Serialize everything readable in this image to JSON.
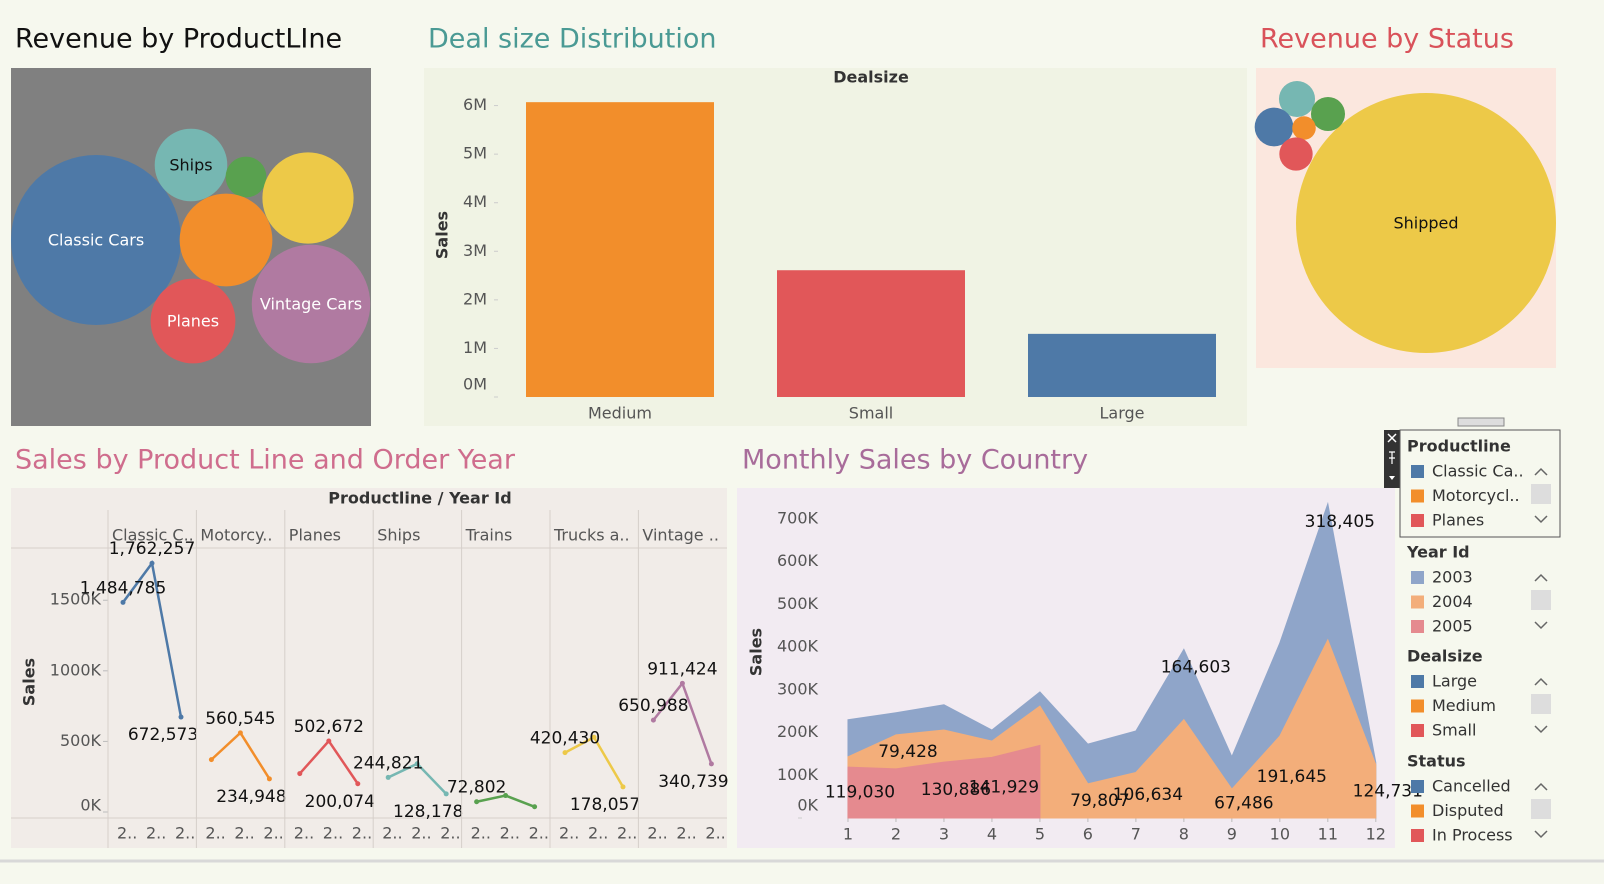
{
  "chart_data": [
    {
      "type": "bubble",
      "title": "Revenue by ProductLIne",
      "categories": [
        "Classic Cars",
        "Ships",
        null,
        null,
        null,
        "Planes",
        "Vintage Cars"
      ],
      "values": [
        3919616,
        714437,
        226243,
        1127790,
        1166388,
        975004,
        1903151
      ],
      "colors": [
        "#4e79a7",
        "#76b7b2",
        "#59a14f",
        "#edc948",
        "#f28e2b",
        "#e15759",
        "#b07aa1"
      ]
    },
    {
      "type": "bar",
      "title": "Deal size Distribution",
      "header": "Dealsize",
      "ylabel": "Sales",
      "categories": [
        "Medium",
        "Small",
        "Large"
      ],
      "values": [
        6070000,
        2610000,
        1300000
      ],
      "colors": [
        "#f28e2b",
        "#e15759",
        "#4e79a7"
      ],
      "ylim": [
        0,
        6300000
      ],
      "yticks": [
        {
          "value": 0,
          "label": "0M"
        },
        {
          "value": 1000000,
          "label": "1M"
        },
        {
          "value": 2000000,
          "label": "2M"
        },
        {
          "value": 3000000,
          "label": "3M"
        },
        {
          "value": 4000000,
          "label": "4M"
        },
        {
          "value": 5000000,
          "label": "5M"
        },
        {
          "value": 6000000,
          "label": "6M"
        }
      ]
    },
    {
      "type": "line",
      "title": "Sales by Product Line and Order Year",
      "header": "Productline / Year Id",
      "ylabel": "Sales",
      "categories": [
        "2..",
        "2..",
        "2.."
      ],
      "ylim": [
        0,
        1870000
      ],
      "yticks": [
        {
          "value": 0,
          "label": "0K"
        },
        {
          "value": 500000,
          "label": "500K"
        },
        {
          "value": 1000000,
          "label": "1000K"
        },
        {
          "value": 1500000,
          "label": "1500K"
        }
      ],
      "series": [
        {
          "name": "Classic C..",
          "color": "#4e79a7",
          "values": [
            1484785,
            1762257,
            672573
          ],
          "value_labels": [
            "1,484,785",
            "1,762,257",
            "672,573"
          ]
        },
        {
          "name": "Motorcy..",
          "color": "#f28e2b",
          "values": [
            370895,
            560545,
            234948
          ],
          "value_labels": [
            null,
            "560,545",
            "234,948"
          ]
        },
        {
          "name": "Planes",
          "color": "#e15759",
          "values": [
            272258,
            502672,
            200074
          ],
          "value_labels": [
            null,
            "502,672",
            "200,074"
          ]
        },
        {
          "name": "Ships",
          "color": "#76b7b2",
          "values": [
            244821,
            341437,
            128178
          ],
          "value_labels": [
            "244,821",
            null,
            "128,178"
          ]
        },
        {
          "name": "Trains",
          "color": "#59a14f",
          "values": [
            72802,
            116524,
            36917
          ],
          "value_labels": [
            "72,802",
            null,
            null
          ]
        },
        {
          "name": "Trucks a..",
          "color": "#edc948",
          "values": [
            420430,
            529302,
            178057
          ],
          "value_labels": [
            "420,430",
            null,
            "178,057"
          ]
        },
        {
          "name": "Vintage ..",
          "color": "#b07aa1",
          "values": [
            650988,
            911424,
            340739
          ],
          "value_labels": [
            "650,988",
            "911,424",
            "340,739"
          ]
        }
      ]
    },
    {
      "type": "area",
      "title": "Monthly Sales by Country",
      "ylabel": "Sales",
      "x": [
        1,
        2,
        3,
        4,
        5,
        6,
        7,
        8,
        9,
        10,
        11,
        12
      ],
      "xlim": [
        0,
        12.4
      ],
      "xticks": [
        1,
        2,
        3,
        4,
        5,
        6,
        7,
        8,
        9,
        10,
        11,
        12
      ],
      "ylim": [
        0,
        770000
      ],
      "yticks": [
        {
          "value": 0,
          "label": "0K"
        },
        {
          "value": 100000,
          "label": "100K"
        },
        {
          "value": 200000,
          "label": "200K"
        },
        {
          "value": 300000,
          "label": "300K"
        },
        {
          "value": 400000,
          "label": "400K"
        },
        {
          "value": 500000,
          "label": "500K"
        },
        {
          "value": 600000,
          "label": "600K"
        },
        {
          "value": 700000,
          "label": "700K"
        }
      ],
      "series": [
        {
          "color": "#e58a8f",
          "values": [
            119030,
            115000,
            130886,
            141929,
            170000,
            null,
            null,
            null,
            null,
            null,
            null,
            null
          ],
          "value_labels": [
            "119,030",
            null,
            "130,886",
            "141,929",
            null,
            null,
            null,
            null,
            null,
            null,
            null,
            null
          ]
        },
        {
          "color": "#f3ae7a",
          "values": [
            24000,
            79428,
            75000,
            38000,
            92000,
            79807,
            106634,
            230000,
            67486,
            191645,
            417000,
            124731
          ],
          "value_labels": [
            null,
            "79,428",
            null,
            null,
            null,
            "79,807",
            "106,634",
            null,
            "67,486",
            "191,645",
            null,
            "124,731"
          ]
        },
        {
          "color": "#8fa5c9",
          "values": [
            87000,
            52000,
            59000,
            26000,
            33000,
            93000,
            97000,
            164603,
            76000,
            218000,
            318405,
            5000
          ],
          "value_labels": [
            null,
            null,
            null,
            null,
            null,
            null,
            null,
            "164,603",
            null,
            null,
            "318,405",
            null
          ]
        }
      ]
    },
    {
      "type": "bubble",
      "title": "Revenue by Status",
      "categories": [
        "Shipped",
        null,
        null,
        null,
        null,
        null
      ],
      "values": [
        8797000,
        169576,
        150718,
        194487,
        72212,
        144730
      ],
      "colors": [
        "#edc948",
        "#76b7b2",
        "#59a14f",
        "#4e79a7",
        "#f28e2b",
        "#e15759"
      ]
    }
  ],
  "legend_panel": {
    "sections": [
      {
        "title": "Productline",
        "items": [
          {
            "label": "Classic Ca..",
            "color": "#4e79a7"
          },
          {
            "label": "Motorcycl..",
            "color": "#f28e2b"
          },
          {
            "label": "Planes",
            "color": "#e15759"
          }
        ]
      },
      {
        "title": "Year Id",
        "items": [
          {
            "label": "2003",
            "color": "#8fa5c9"
          },
          {
            "label": "2004",
            "color": "#f3ae7a"
          },
          {
            "label": "2005",
            "color": "#e58a8f"
          }
        ]
      },
      {
        "title": "Dealsize",
        "items": [
          {
            "label": "Large",
            "color": "#4e79a7"
          },
          {
            "label": "Medium",
            "color": "#f28e2b"
          },
          {
            "label": "Small",
            "color": "#e15759"
          }
        ]
      },
      {
        "title": "Status",
        "items": [
          {
            "label": "Cancelled",
            "color": "#4e79a7"
          },
          {
            "label": "Disputed",
            "color": "#f28e2b"
          },
          {
            "label": "In Process",
            "color": "#e15759"
          }
        ]
      }
    ]
  }
}
